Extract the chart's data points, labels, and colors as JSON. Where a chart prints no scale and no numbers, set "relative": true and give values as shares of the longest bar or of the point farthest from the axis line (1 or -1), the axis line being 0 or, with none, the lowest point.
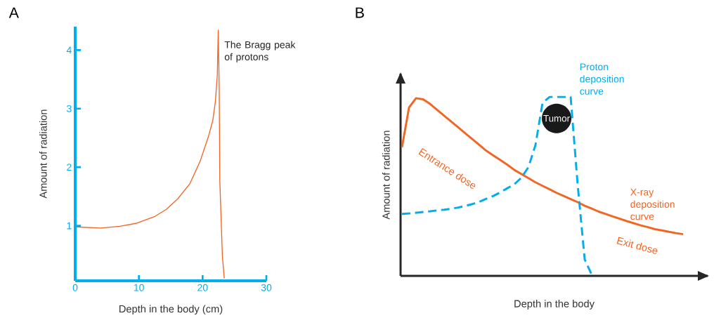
{
  "chart_data": [
    {
      "type": "line",
      "title": "A",
      "xlabel": "Depth in the body (cm)",
      "ylabel": "Amount of radiation",
      "x": [
        0.2,
        4.0,
        7.0,
        9.5,
        12.5,
        14.3,
        16.1,
        18.0,
        19.6,
        20.9,
        21.6,
        22.0,
        22.3,
        22.45,
        22.6,
        22.7,
        23.1,
        23.4
      ],
      "series": [
        {
          "color": "#f26522",
          "values": [
            0.98,
            0.96,
            0.99,
            1.04,
            1.16,
            1.28,
            1.46,
            1.72,
            2.1,
            2.52,
            2.8,
            3.12,
            3.56,
            4.34,
            3.36,
            1.76,
            0.48,
            0.1
          ]
        }
      ],
      "xlim": [
        0,
        30
      ],
      "ylim": [
        0.06,
        4.4
      ],
      "xticks": [
        0,
        10,
        20,
        30
      ],
      "yticks": [
        1,
        2,
        3,
        4
      ],
      "annotations": [
        {
          "text": "The Bragg peak of protons",
          "x": 22.45,
          "y": 4.34
        }
      ]
    },
    {
      "type": "line",
      "title": "B",
      "xlabel": "Depth in the body",
      "ylabel": "Amount of radiation",
      "relative": true,
      "categories": [
        null,
        null,
        null,
        null,
        null,
        null,
        null,
        null,
        null,
        null,
        null,
        null,
        null,
        null,
        null,
        null,
        null,
        null,
        null,
        null,
        null,
        null,
        null,
        null,
        null,
        null,
        null,
        null,
        null,
        null,
        null,
        null,
        null,
        null,
        null,
        null,
        null,
        null,
        null,
        null,
        null
      ],
      "series": [
        {
          "name": "X-ray deposition curve",
          "color": "#f26522",
          "line_style": "solid",
          "values": [
            0.719,
            0.941,
            0.993,
            0.987,
            0.961,
            0.928,
            0.895,
            0.863,
            0.83,
            0.797,
            0.765,
            0.732,
            0.699,
            0.673,
            0.647,
            0.621,
            0.592,
            0.569,
            0.546,
            0.523,
            0.503,
            0.484,
            0.464,
            0.447,
            0.429,
            0.412,
            0.392,
            0.376,
            0.359,
            0.346,
            0.332,
            0.319,
            0.306,
            0.294,
            0.282,
            0.272,
            0.261,
            0.254,
            0.246,
            0.239,
            0.233
          ]
        },
        {
          "name": "Proton deposition curve",
          "color": "#00aeef",
          "line_style": "dashed",
          "values": [
            0.346,
            0.349,
            0.353,
            0.357,
            0.361,
            0.366,
            0.37,
            0.375,
            0.382,
            0.391,
            0.401,
            0.414,
            0.431,
            0.447,
            0.467,
            0.49,
            0.512,
            0.549,
            0.608,
            0.732,
            0.967,
            1.0,
            1.0,
            1.0,
            1.0,
            0.51,
            0.092,
            0.007,
            null,
            null,
            null,
            null,
            null,
            null,
            null,
            null,
            null,
            null,
            null,
            null,
            null
          ]
        }
      ],
      "annotations": [
        "Entrance dose",
        "Exit dose",
        "Tumor"
      ]
    }
  ]
}
